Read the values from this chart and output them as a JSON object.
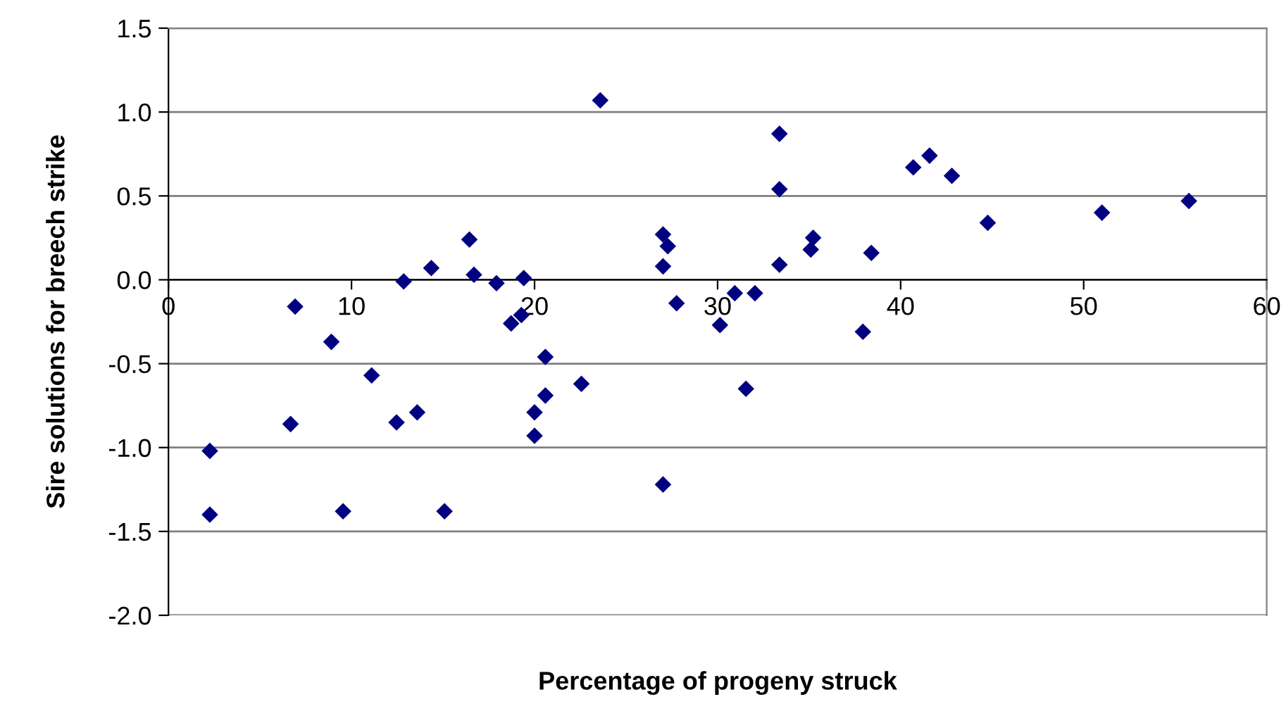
{
  "chart_data": {
    "type": "scatter",
    "xlabel": "Percentage of progeny struck",
    "ylabel": "Sire solutions for breech strike",
    "x": [
      2.26,
      2.26,
      6.92,
      6.67,
      8.9,
      9.54,
      11.1,
      12.85,
      12.46,
      13.59,
      14.36,
      15.08,
      16.44,
      16.69,
      17.92,
      19.41,
      18.72,
      19.28,
      20.59,
      20.59,
      20.0,
      20.0,
      22.56,
      23.59,
      33.38,
      33.38,
      33.38,
      40.69,
      41.58,
      42.8,
      44.76,
      51.0,
      55.75,
      27.02,
      27.28,
      27.02,
      27.76,
      35.22,
      35.09,
      38.4,
      30.94,
      32.04,
      30.13,
      37.94,
      31.55,
      27.02
    ],
    "series": [
      {
        "color": "#000080",
        "values": [
          -1.02,
          -1.4,
          -0.16,
          -0.86,
          -0.37,
          -1.38,
          -0.57,
          -0.01,
          -0.85,
          -0.79,
          0.07,
          -1.38,
          0.24,
          0.03,
          -0.02,
          0.01,
          -0.26,
          -0.21,
          -0.46,
          -0.69,
          -0.79,
          -0.93,
          -0.62,
          1.07,
          0.87,
          0.54,
          0.09,
          0.67,
          0.74,
          0.62,
          0.34,
          0.4,
          0.47,
          0.27,
          0.2,
          0.08,
          -0.14,
          0.25,
          0.18,
          0.16,
          -0.08,
          -0.08,
          -0.27,
          -0.31,
          -0.65,
          -1.22
        ]
      }
    ],
    "xlim": [
      0,
      60
    ],
    "xticks": [
      0,
      10,
      20,
      30,
      40,
      50,
      60
    ],
    "ylim": [
      -2.0,
      1.5
    ],
    "yticks": [
      {
        "value": -2.0,
        "label": "-2.0"
      },
      {
        "value": -1.5,
        "label": "-1.5"
      },
      {
        "value": -1.0,
        "label": "-1.0"
      },
      {
        "value": -0.5,
        "label": "-0.5"
      },
      {
        "value": 0.0,
        "label": "0.0"
      },
      {
        "value": 0.5,
        "label": "0.5"
      },
      {
        "value": 1.0,
        "label": "1.0"
      },
      {
        "value": 1.5,
        "label": "1.5"
      }
    ],
    "grid": "y",
    "marker": "diamond"
  }
}
